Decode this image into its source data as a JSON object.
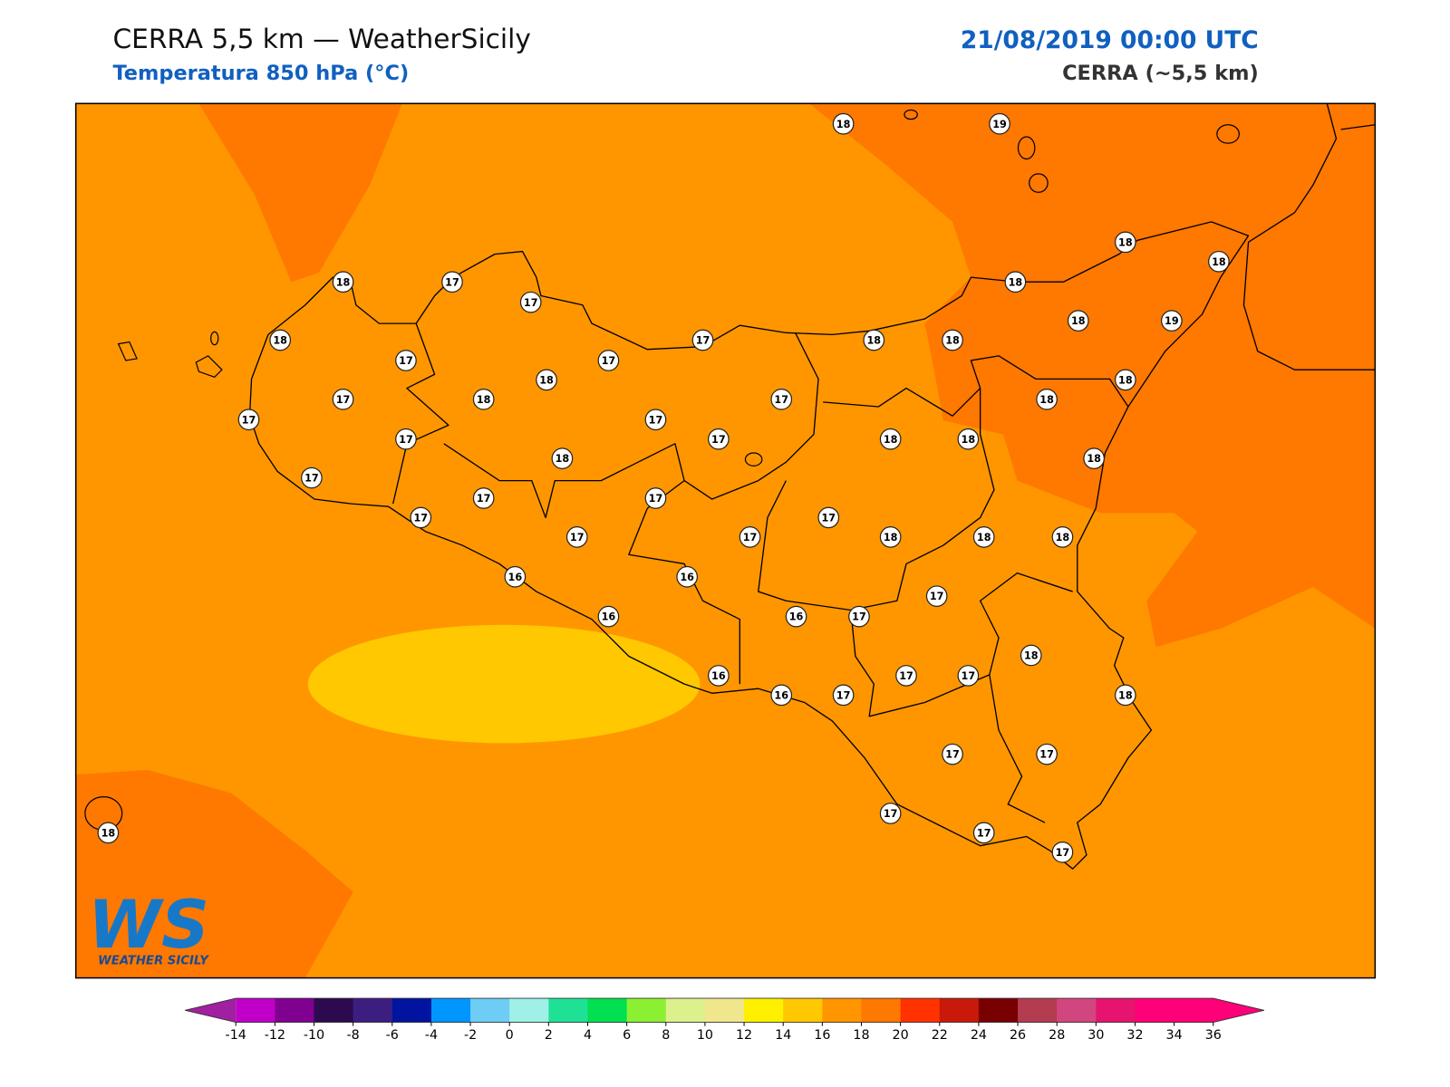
{
  "header": {
    "title": "CERRA 5,5 km — WeatherSicily",
    "subtitle": "Temperatura 850 hPa (°C)",
    "date": "21/08/2019 00:00 UTC",
    "model": "CERRA (~5,5 km)"
  },
  "stations": [
    18,
    19,
    18,
    18,
    18,
    17,
    17,
    18,
    18,
    17,
    18,
    18,
    18,
    19,
    17,
    17,
    18,
    18,
    17,
    18,
    17,
    18,
    17,
    17,
    17,
    17,
    18,
    18,
    18,
    18,
    17,
    17,
    17,
    17,
    17,
    17,
    17,
    18,
    18,
    18,
    16,
    16,
    17,
    16,
    16,
    17,
    18,
    16,
    17,
    17,
    16,
    17,
    18,
    17,
    17,
    17,
    17,
    17,
    18
  ],
  "colorbar": {
    "ticks": [
      -14,
      -12,
      -10,
      -8,
      -6,
      -4,
      -2,
      0,
      2,
      4,
      6,
      8,
      10,
      12,
      14,
      16,
      18,
      20,
      22,
      24,
      26,
      28,
      30,
      32,
      34,
      36
    ],
    "colors": [
      "#c000c8",
      "#800090",
      "#2d0a50",
      "#3c1e80",
      "#0014a0",
      "#0096ff",
      "#6ecdf5",
      "#9ff0e6",
      "#1ee196",
      "#00e050",
      "#8cf032",
      "#dcf08c",
      "#f0e68c",
      "#fff000",
      "#ffc800",
      "#ff9600",
      "#ff7800",
      "#ff3200",
      "#c8190a",
      "#780000",
      "#b43c50",
      "#d24680",
      "#e6146e",
      "#ff0078",
      "#ff0078"
    ],
    "under": "#a020a0",
    "over": "#ff0078"
  },
  "logo": {
    "mark": "WS",
    "text": "WEATHER SICILY"
  }
}
